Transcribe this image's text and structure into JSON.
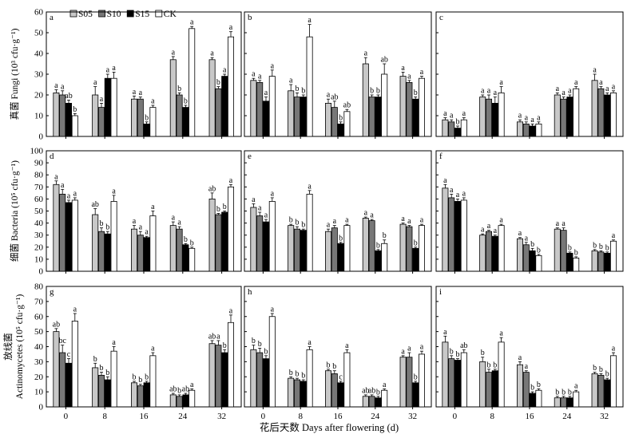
{
  "chart_data": {
    "type": "bar",
    "categories": [
      "0",
      "8",
      "16",
      "24",
      "32"
    ],
    "legend": [
      {
        "name": "S05",
        "color": "#c8c8c8"
      },
      {
        "name": "S10",
        "color": "#777777"
      },
      {
        "name": "S15",
        "color": "#000000"
      },
      {
        "name": "CK",
        "color": "#ffffff"
      }
    ],
    "xlabel": "花后天数 Days after flowering (d)",
    "rows": [
      {
        "ylabel_lines": [
          "真菌 Fungi (10³ cfu·g⁻¹)"
        ],
        "ylim": [
          0,
          60
        ],
        "yticks": [
          0,
          10,
          20,
          30,
          40,
          50,
          60
        ]
      },
      {
        "ylabel_lines": [
          "细菌 Bacteria (10⁵ cfu·g⁻¹)"
        ],
        "ylim": [
          0,
          100
        ],
        "yticks": [
          0,
          10,
          20,
          30,
          40,
          50,
          60,
          70,
          80,
          90,
          100
        ]
      },
      {
        "ylabel_lines": [
          "放线菌",
          "Actinomycetes (10⁵ cfu·g⁻¹)"
        ],
        "ylim": [
          0,
          80
        ],
        "yticks": [
          0,
          10,
          20,
          30,
          40,
          50,
          60,
          70,
          80
        ]
      }
    ],
    "panels": [
      {
        "label": "a",
        "values": [
          [
            21,
            20,
            16,
            10
          ],
          [
            20,
            14,
            28,
            28
          ],
          [
            18,
            18,
            6,
            14
          ],
          [
            37,
            20,
            14,
            52
          ],
          [
            37,
            23,
            29,
            48
          ]
        ],
        "errors": [
          [
            1.5,
            2,
            1.5,
            1
          ],
          [
            4,
            2,
            2,
            3
          ],
          [
            1.5,
            1,
            1,
            1
          ],
          [
            1.5,
            1,
            1,
            1
          ],
          [
            1,
            1,
            1,
            2.5
          ]
        ],
        "labels": [
          [
            "a",
            "a",
            "ab",
            "b"
          ],
          [
            "a",
            "a",
            "a",
            "a"
          ],
          [
            "a",
            "a",
            "b",
            "a"
          ],
          [
            "a",
            "b",
            "b",
            "a"
          ],
          [
            "a",
            "b",
            "a",
            "a"
          ]
        ]
      },
      {
        "label": "b",
        "values": [
          [
            27,
            26,
            17,
            29
          ],
          [
            22,
            19,
            19,
            48
          ],
          [
            16,
            14,
            6,
            12
          ],
          [
            35,
            19,
            19,
            30
          ],
          [
            29,
            26,
            18,
            28
          ]
        ],
        "errors": [
          [
            1,
            1,
            2,
            3
          ],
          [
            3,
            2,
            1,
            6
          ],
          [
            2,
            3,
            1,
            1
          ],
          [
            3,
            1,
            1,
            5
          ],
          [
            2,
            1,
            1,
            1
          ]
        ],
        "labels": [
          [
            "a",
            "a",
            "a",
            "a"
          ],
          [
            "a",
            "b",
            "b",
            "a"
          ],
          [
            "a",
            "ab",
            "b",
            "ab"
          ],
          [
            "a",
            "b",
            "b",
            "ab"
          ],
          [
            "a",
            "a",
            "b",
            "a"
          ]
        ]
      },
      {
        "label": "c",
        "values": [
          [
            8,
            7,
            4,
            8
          ],
          [
            19,
            18,
            16,
            21
          ],
          [
            7,
            6,
            5,
            6
          ],
          [
            20,
            18,
            19,
            23
          ],
          [
            27,
            23,
            20,
            21
          ]
        ],
        "errors": [
          [
            1,
            1,
            1,
            1
          ],
          [
            1,
            2,
            3,
            3
          ],
          [
            1,
            1,
            1,
            1
          ],
          [
            1,
            1,
            1,
            1
          ],
          [
            3,
            1,
            1,
            1
          ]
        ],
        "labels": [
          [
            "a",
            "a",
            "b",
            "a"
          ],
          [
            "a",
            "a",
            "a",
            "a"
          ],
          [
            "a",
            "a",
            "a",
            "a"
          ],
          [
            "a",
            "a",
            "a",
            "a"
          ],
          [
            "a",
            "a",
            "a",
            "a"
          ]
        ]
      },
      {
        "label": "d",
        "values": [
          [
            72,
            64,
            57,
            59
          ],
          [
            47,
            33,
            31,
            58
          ],
          [
            35,
            30,
            28,
            46
          ],
          [
            38,
            35,
            22,
            19
          ],
          [
            60,
            47,
            49,
            70
          ]
        ],
        "errors": [
          [
            3,
            4,
            2,
            2
          ],
          [
            5,
            3,
            2,
            5
          ],
          [
            3,
            3,
            1,
            4
          ],
          [
            3,
            2,
            1,
            1
          ],
          [
            5,
            1,
            1,
            2
          ]
        ],
        "labels": [
          [
            "a",
            "a",
            "a",
            "a"
          ],
          [
            "ab",
            "b",
            "b",
            "a"
          ],
          [
            "a",
            "a",
            "a",
            "a"
          ],
          [
            "a",
            "a",
            "b",
            "b"
          ],
          [
            "ab",
            "b",
            "b",
            "a"
          ]
        ]
      },
      {
        "label": "e",
        "values": [
          [
            53,
            46,
            41,
            58
          ],
          [
            38,
            35,
            34,
            64
          ],
          [
            33,
            36,
            23,
            38
          ],
          [
            44,
            42,
            17,
            23
          ],
          [
            39,
            37,
            19,
            38
          ]
        ],
        "errors": [
          [
            3,
            3,
            2,
            3
          ],
          [
            1,
            2,
            1,
            3
          ],
          [
            2,
            2,
            1,
            1
          ],
          [
            1,
            1,
            1,
            3
          ],
          [
            1,
            1,
            1,
            1
          ]
        ],
        "labels": [
          [
            "a",
            "a",
            "a",
            "a"
          ],
          [
            "b",
            "b",
            "b",
            "a"
          ],
          [
            "a",
            "a",
            "b",
            "a"
          ],
          [
            "a",
            "a",
            "b",
            "b"
          ],
          [
            "a",
            "a",
            "b",
            "a"
          ]
        ]
      },
      {
        "label": "f",
        "values": [
          [
            69,
            61,
            58,
            59
          ],
          [
            30,
            33,
            29,
            38
          ],
          [
            27,
            22,
            17,
            13
          ],
          [
            35,
            34,
            15,
            11
          ],
          [
            17,
            16,
            15,
            25
          ]
        ],
        "errors": [
          [
            3,
            3,
            2,
            2
          ],
          [
            1,
            1,
            1,
            1
          ],
          [
            1,
            2,
            2,
            1
          ],
          [
            1,
            2,
            1,
            1
          ],
          [
            1,
            1,
            1,
            1
          ]
        ],
        "labels": [
          [
            "a",
            "a",
            "a",
            "a"
          ],
          [
            "a",
            "a",
            "a",
            "a"
          ],
          [
            "a",
            "a",
            "b",
            "b"
          ],
          [
            "a",
            "a",
            "b",
            "b"
          ],
          [
            "b",
            "b",
            "b",
            "a"
          ]
        ]
      },
      {
        "label": "g",
        "values": [
          [
            50,
            36,
            29,
            57
          ],
          [
            26,
            21,
            18,
            37
          ],
          [
            16,
            14,
            16,
            34
          ],
          [
            8,
            7,
            8,
            11
          ],
          [
            42,
            41,
            36,
            56
          ]
        ],
        "errors": [
          [
            2,
            5,
            3,
            5
          ],
          [
            3,
            2,
            2,
            3
          ],
          [
            1,
            1,
            1,
            2
          ],
          [
            1,
            1,
            1,
            1
          ],
          [
            2,
            3,
            2,
            5
          ]
        ],
        "labels": [
          [
            "ab",
            "bc",
            "c",
            "a"
          ],
          [
            "b",
            "b",
            "b",
            "a"
          ],
          [
            "b",
            "b",
            "b",
            "a"
          ],
          [
            "ab",
            "b",
            "ab",
            "a"
          ],
          [
            "ab",
            "a",
            "b",
            "a"
          ]
        ]
      },
      {
        "label": "h",
        "values": [
          [
            38,
            36,
            32,
            60
          ],
          [
            19,
            18,
            17,
            38
          ],
          [
            24,
            22,
            16,
            36
          ],
          [
            7,
            7,
            6,
            11
          ],
          [
            33,
            33,
            16,
            35
          ]
        ],
        "errors": [
          [
            3,
            3,
            2,
            2
          ],
          [
            1,
            1,
            1,
            2
          ],
          [
            1,
            2,
            1,
            2
          ],
          [
            1,
            1,
            1,
            1
          ],
          [
            1,
            3,
            1,
            2
          ]
        ],
        "labels": [
          [
            "b",
            "b",
            "b",
            "a"
          ],
          [
            "b",
            "b",
            "b",
            "a"
          ],
          [
            "b",
            "b",
            "c",
            "a"
          ],
          [
            "ab",
            "ab",
            "b",
            "a"
          ],
          [
            "a",
            "a",
            "b",
            "a"
          ]
        ]
      },
      {
        "label": "i",
        "values": [
          [
            43,
            32,
            31,
            36
          ],
          [
            30,
            23,
            24,
            43
          ],
          [
            28,
            23,
            9,
            11
          ],
          [
            6,
            6,
            6,
            10
          ],
          [
            22,
            21,
            18,
            34
          ]
        ],
        "errors": [
          [
            4,
            2,
            1,
            2
          ],
          [
            3,
            2,
            1,
            3
          ],
          [
            2,
            1,
            1,
            1
          ],
          [
            1,
            1,
            1,
            1
          ],
          [
            1,
            1,
            1,
            2
          ]
        ],
        "labels": [
          [
            "a",
            "b",
            "b",
            "ab"
          ],
          [
            "b",
            "b",
            "b",
            "a"
          ],
          [
            "a",
            "a",
            "b",
            "b"
          ],
          [
            "b",
            "b",
            "b",
            "a"
          ],
          [
            "b",
            "b",
            "b",
            "a"
          ]
        ]
      }
    ]
  }
}
